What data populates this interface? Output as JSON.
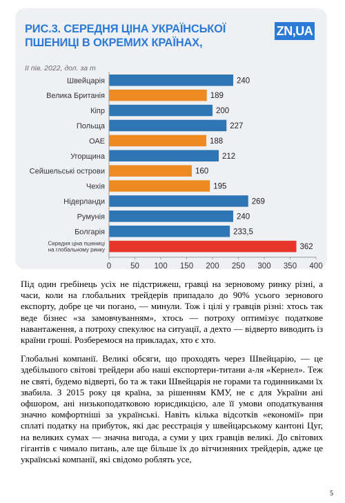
{
  "chart_data": {
    "type": "bar",
    "orientation": "horizontal",
    "title": "Рис.3. СЕРЕДНЯ ЦІНА УКРАЇНСЬКОЇ ПШЕНИЦІ В ОКРЕМИХ КРАЇНАХ,",
    "subtitle": "II пів. 2022, дол. за т",
    "brand": "ZN,UA",
    "categories": [
      "Швейцарія",
      "Велика Британія",
      "Кіпр",
      "Польща",
      "ОАЕ",
      "Угорщина",
      "Сейшельські острови",
      "Чехія",
      "Нідерланди",
      "Румунія",
      "Болгарія",
      "Середня ціна пшениці на глобальному ринку"
    ],
    "values": [
      240,
      189,
      200,
      227,
      188,
      212,
      160,
      195,
      269,
      240,
      233.5,
      362
    ],
    "value_labels": [
      "240",
      "189",
      "200",
      "227",
      "188",
      "212",
      "160",
      "195",
      "269",
      "240",
      "233,5",
      "362"
    ],
    "colors": [
      "#2e75b6",
      "#ed8b22",
      "#2e75b6",
      "#2e75b6",
      "#ed8b22",
      "#2e75b6",
      "#ed8b22",
      "#ed8b22",
      "#2e75b6",
      "#2e75b6",
      "#2e75b6",
      "#e8362d"
    ],
    "xlim": [
      0,
      400
    ],
    "xticks": [
      "0",
      "50",
      "100",
      "150",
      "200",
      "250",
      "300",
      "350",
      "400"
    ],
    "grid": false,
    "xlabel": "",
    "ylabel": ""
  },
  "article": {
    "paragraphs": [
      "Під один гребінець усіх не підстрижеш, гравці на зерновому ринку різні, а часи, коли на глобальних трейдерів припадало до 90% усього зернового експорту, добре це чи погано, — минули. Тож і цілі у гравців різні: хтось так веде бізнес «за замовчуванням», хтось — потроху оптимізує податкове навантаження, а потроху спекулює на ситуації, а дехто — відверто виводить із країни гроші. Розберемося на прикладах, хто є хто.",
      "Глобальні компанії. Великі обсяги, що проходять через Швейцарію, — це здебільшого світові трейдери або наші експортери-титани а-ля «Кернел». Теж не святі, будемо відверті, бо та ж таки Швейцарія не горами та годинниками їх звабила. З 2015 року ця країна, за рішенням КМУ, не є для України ані офшором, ані низькоподатковою юрисдикцією, але її умови оподаткування значно комфортніші за українські. Навіть кілька відсотків «економії» при сплаті податку на прибуток, які дає реєстрація у швейцарському кантоні Цуг, на великих сумах — значна вигода, а суми у цих гравців великі. До світових гігантів є чимало питань, але ще більше їх до вітчизняних трейдерів, адже це українські компанії, які свідомо роблять усе,"
    ]
  },
  "page_number": "5"
}
